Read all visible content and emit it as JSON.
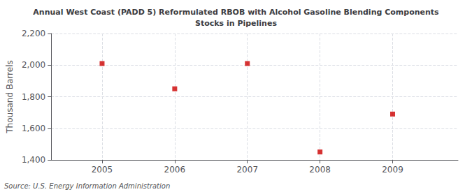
{
  "chart_data": {
    "type": "scatter",
    "title": "Annual West Coast (PADD 5) Reformulated RBOB with Alcohol Gasoline Blending Components\nStocks in Pipelines",
    "ylabel": "Thousand Barrels",
    "x": [
      2005,
      2006,
      2007,
      2008,
      2009
    ],
    "values": [
      2010,
      1850,
      2010,
      1450,
      1690
    ],
    "color": "#cc0000",
    "marker": "square",
    "xlim": [
      2004.3,
      2009.9
    ],
    "xticks": [
      2005,
      2006,
      2007,
      2008,
      2009
    ],
    "ylim": [
      1400,
      2200
    ],
    "yticks": [
      {
        "value": 1400,
        "label": "1,400"
      },
      {
        "value": 1600,
        "label": "1,600"
      },
      {
        "value": 1800,
        "label": "1,800"
      },
      {
        "value": 2000,
        "label": "2,000"
      },
      {
        "value": 2200,
        "label": "2,200"
      }
    ],
    "grid": true,
    "annotation": "Source: U.S. Energy Information Administration"
  }
}
